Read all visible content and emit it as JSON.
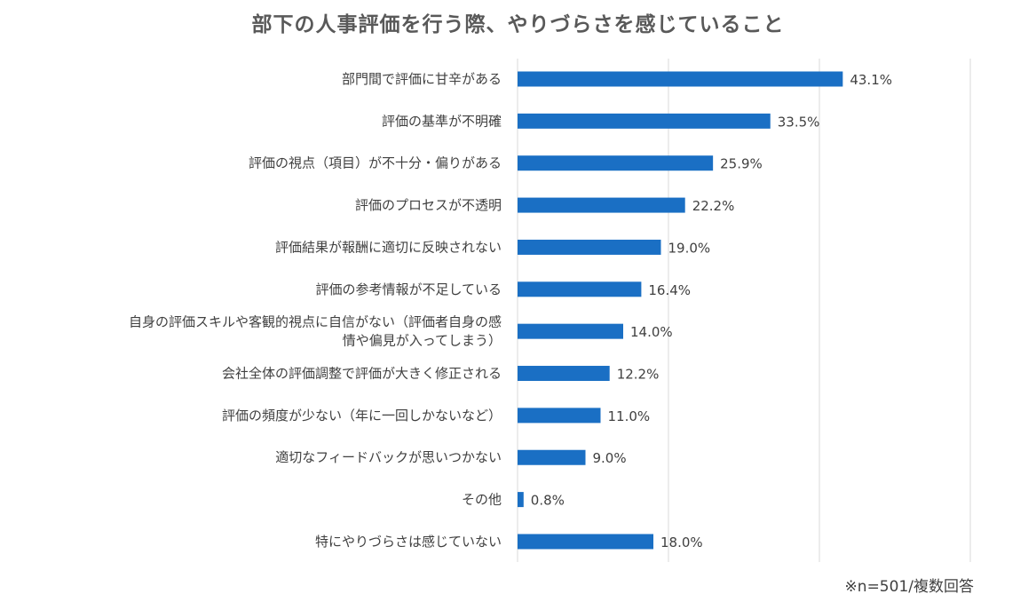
{
  "chart_data": {
    "type": "bar",
    "orientation": "horizontal",
    "title": "部下の人事評価を行う際、やりづらさを感じていること",
    "note": "※n=501/複数回答",
    "unit": "%",
    "xlim": [
      0,
      60
    ],
    "gridlines": [
      0,
      20,
      40,
      60
    ],
    "bar_color": "#1a6fc4",
    "categories": [
      [
        "部門間で評価に甘辛がある"
      ],
      [
        "評価の基準が不明確"
      ],
      [
        "評価の視点（項目）が不十分・偏りがある"
      ],
      [
        "評価のプロセスが不透明"
      ],
      [
        "評価結果が報酬に適切に反映されない"
      ],
      [
        "評価の参考情報が不足している"
      ],
      [
        "自身の評価スキルや客観的視点に自信がない（評価者自身の感",
        "情や偏見が入ってしまう）"
      ],
      [
        "会社全体の評価調整で評価が大きく修正される"
      ],
      [
        "評価の頻度が少ない（年に一回しかないなど）"
      ],
      [
        "適切なフィードバックが思いつかない"
      ],
      [
        "その他"
      ],
      [
        "特にやりづらさは感じていない"
      ]
    ],
    "values": [
      43.1,
      33.5,
      25.9,
      22.2,
      19.0,
      16.4,
      14.0,
      12.2,
      11.0,
      9.0,
      0.8,
      18.0
    ],
    "value_labels": [
      "43.1%",
      "33.5%",
      "25.9%",
      "22.2%",
      "19.0%",
      "16.4%",
      "14.0%",
      "12.2%",
      "11.0%",
      "9.0%",
      "0.8%",
      "18.0%"
    ]
  }
}
